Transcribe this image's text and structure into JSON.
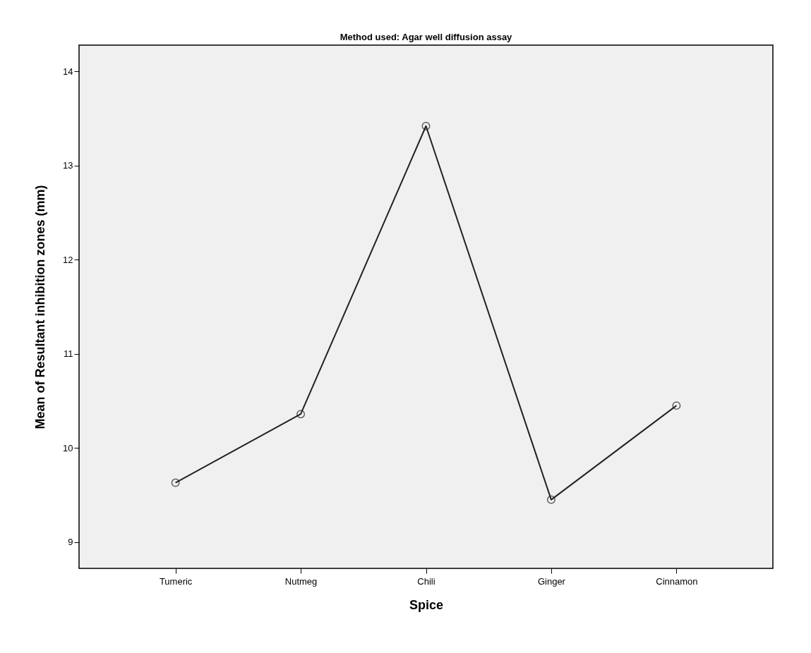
{
  "chart_data": {
    "type": "line",
    "title": "Method used: Agar well diffusion assay",
    "xlabel": "Spice",
    "ylabel": "Mean of Resultant inhibition zones (mm)",
    "categories": [
      "Tumeric",
      "Nutmeg",
      "Chili",
      "Ginger",
      "Cinnamon"
    ],
    "series": [
      {
        "color": "#222222",
        "values": [
          9.63,
          10.36,
          13.42,
          9.45,
          10.45
        ]
      }
    ],
    "ylim": [
      8.72,
      14.28
    ],
    "yticks": [
      9,
      10,
      11,
      12,
      13,
      14
    ],
    "grid": false,
    "legend": false,
    "marker": "circle",
    "line_style": "solid"
  }
}
